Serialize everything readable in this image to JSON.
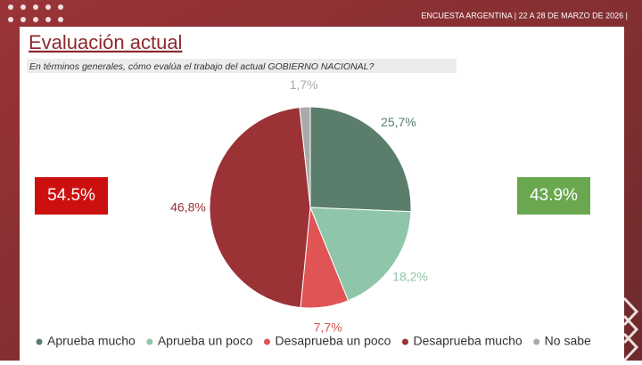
{
  "header": "ENCUESTA ARGENTINA | 22 A 28 DE MARZO DE 2026 |",
  "chart_data": {
    "type": "pie",
    "title": "Evaluación actual",
    "subtitle": "En términos generales, cómo evalúa el trabajo del actual GOBIERNO NACIONAL?",
    "categories": [
      "Aprueba mucho",
      "Aprueba un poco",
      "Desaprueba un poco",
      "Desaprueba mucho",
      "No sabe"
    ],
    "values": [
      25.7,
      18.2,
      7.7,
      46.8,
      1.7
    ],
    "value_labels": [
      "25,7%",
      "18,2%",
      "7,7%",
      "46,8%",
      "1,7%"
    ],
    "colors": [
      "#5b7e6c",
      "#8fc6a9",
      "#e05456",
      "#9b3236",
      "#aaaaaa"
    ],
    "annotations": [
      "54.5%",
      "43.9%"
    ]
  }
}
